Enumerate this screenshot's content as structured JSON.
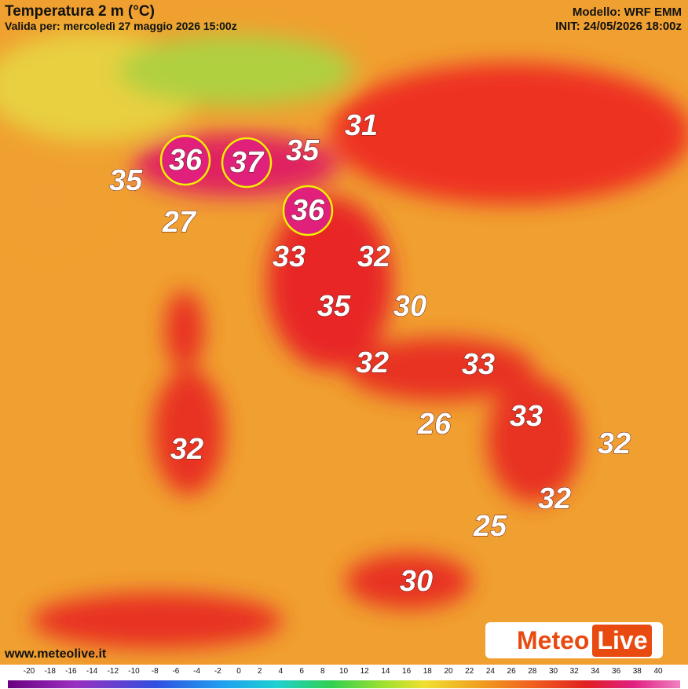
{
  "header": {
    "title": "Temperatura 2 m (°C)",
    "valid": "Valida per: mercoledì 27 maggio 2026 15:00z",
    "model": "Modello: WRF EMM",
    "init": "INIT: 24/05/2026 18:00z"
  },
  "labels": [
    {
      "value": 36,
      "circled": true
    },
    {
      "value": 37,
      "circled": true
    },
    {
      "value": 35,
      "circled": false
    },
    {
      "value": 31,
      "circled": false
    },
    {
      "value": 35,
      "circled": false
    },
    {
      "value": 36,
      "circled": true
    },
    {
      "value": 27,
      "circled": false
    },
    {
      "value": 33,
      "circled": false
    },
    {
      "value": 32,
      "circled": false
    },
    {
      "value": 35,
      "circled": false
    },
    {
      "value": 30,
      "circled": false
    },
    {
      "value": 32,
      "circled": false
    },
    {
      "value": 33,
      "circled": false
    },
    {
      "value": 26,
      "circled": false
    },
    {
      "value": 33,
      "circled": false
    },
    {
      "value": 32,
      "circled": false
    },
    {
      "value": 32,
      "circled": false
    },
    {
      "value": 32,
      "circled": false
    },
    {
      "value": 25,
      "circled": false
    },
    {
      "value": 30,
      "circled": false
    }
  ],
  "footer": {
    "site": "www.meteolive.it",
    "logo_a": "Meteo",
    "logo_b": "Live"
  },
  "colorbar_ticks": [
    -20,
    -18,
    -16,
    -14,
    -12,
    -10,
    -8,
    -6,
    -4,
    -2,
    0,
    2,
    4,
    6,
    8,
    10,
    12,
    14,
    16,
    18,
    20,
    22,
    24,
    26,
    28,
    30,
    32,
    34,
    36,
    38,
    40
  ]
}
